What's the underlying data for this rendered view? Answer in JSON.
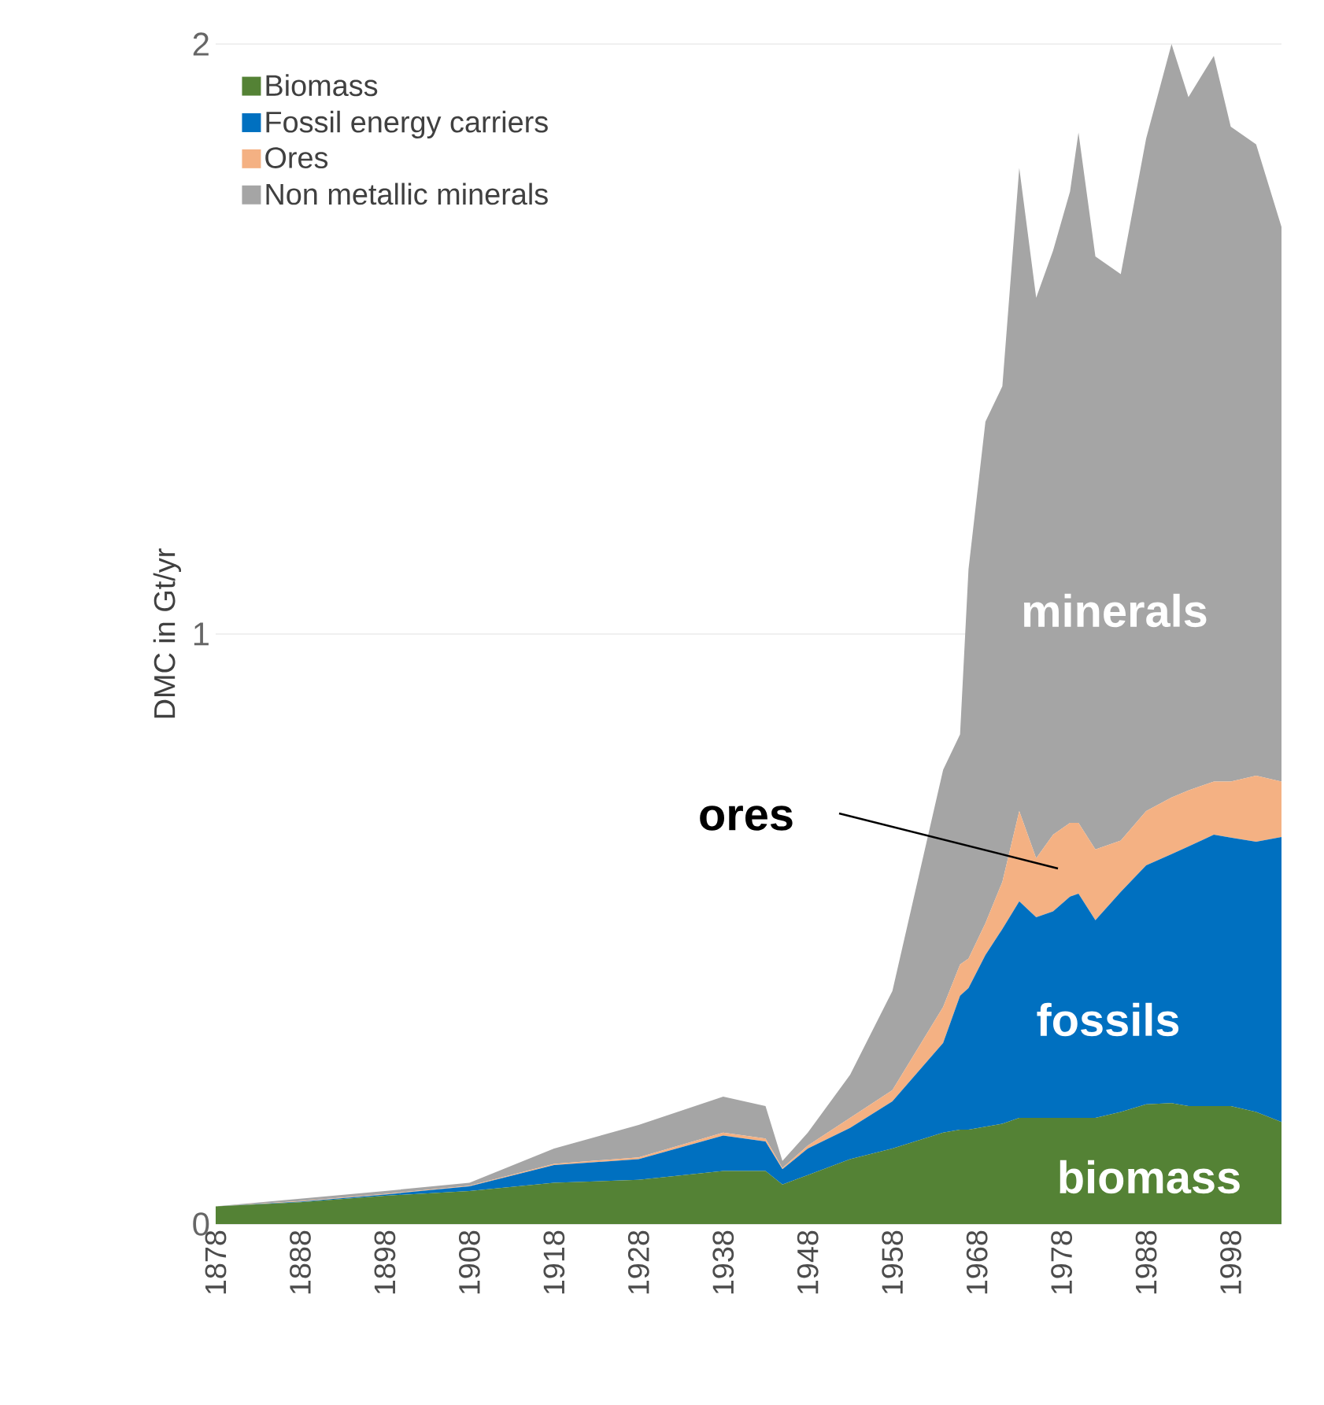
{
  "chart_data": {
    "type": "area",
    "stacked": true,
    "ylabel": "DMC in Gt/yr",
    "x": [
      1878,
      1888,
      1898,
      1908,
      1918,
      1928,
      1938,
      1943,
      1945,
      1948,
      1953,
      1958,
      1964,
      1966,
      1967,
      1969,
      1971,
      1973,
      1975,
      1977,
      1979,
      1980,
      1982,
      1985,
      1988,
      1991,
      1993,
      1996,
      1998,
      2001,
      2004
    ],
    "series": [
      {
        "name": "Biomass",
        "color": "#548235",
        "values": [
          0.03,
          0.037,
          0.048,
          0.056,
          0.07,
          0.075,
          0.09,
          0.09,
          0.067,
          0.083,
          0.11,
          0.128,
          0.155,
          0.16,
          0.16,
          0.165,
          0.17,
          0.18,
          0.18,
          0.18,
          0.18,
          0.18,
          0.18,
          0.19,
          0.203,
          0.205,
          0.2,
          0.2,
          0.2,
          0.19,
          0.173
        ]
      },
      {
        "name": "Fossil energy carriers",
        "color": "#0070c0",
        "values": [
          0,
          0.001,
          0.002,
          0.008,
          0.03,
          0.035,
          0.06,
          0.05,
          0.026,
          0.045,
          0.053,
          0.08,
          0.152,
          0.227,
          0.24,
          0.291,
          0.33,
          0.367,
          0.34,
          0.35,
          0.375,
          0.38,
          0.335,
          0.373,
          0.405,
          0.422,
          0.44,
          0.46,
          0.455,
          0.458,
          0.483
        ]
      },
      {
        "name": "Ores",
        "color": "#f4b183",
        "values": [
          0,
          0.001,
          0.001,
          0.001,
          0.002,
          0.003,
          0.005,
          0.005,
          0.002,
          0.005,
          0.017,
          0.019,
          0.061,
          0.053,
          0.05,
          0.054,
          0.08,
          0.153,
          0.1,
          0.13,
          0.125,
          0.12,
          0.12,
          0.087,
          0.092,
          0.096,
          0.095,
          0.09,
          0.095,
          0.112,
          0.094
        ]
      },
      {
        "name": "Non metallic minerals",
        "color": "#a5a5a5",
        "values": [
          0,
          0.004,
          0.005,
          0.005,
          0.026,
          0.055,
          0.061,
          0.055,
          0.012,
          0.022,
          0.073,
          0.168,
          0.402,
          0.39,
          0.66,
          0.85,
          0.84,
          1.09,
          0.95,
          0.99,
          1.07,
          1.17,
          1.005,
          0.96,
          1.14,
          1.277,
          1.175,
          1.23,
          1.11,
          1.07,
          0.94
        ]
      }
    ],
    "xlim": [
      1878,
      2004
    ],
    "xticks": [
      1878,
      1888,
      1898,
      1908,
      1918,
      1928,
      1938,
      1948,
      1958,
      1968,
      1978,
      1988,
      1998
    ],
    "ylim": [
      0,
      2
    ],
    "yticks": [
      0,
      1,
      2
    ],
    "grid": "y",
    "legend": "top left",
    "annotations": [
      "minerals",
      "ores",
      "fossils",
      "biomass"
    ]
  }
}
